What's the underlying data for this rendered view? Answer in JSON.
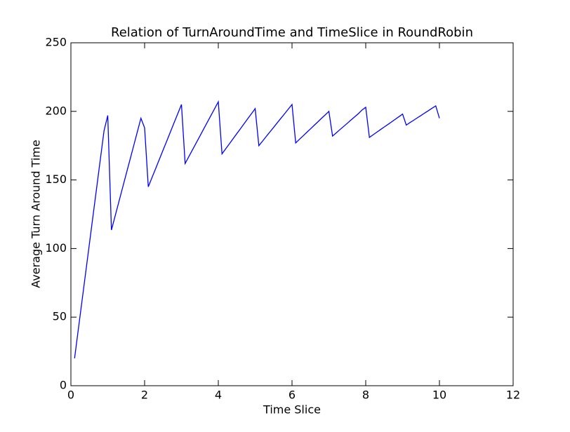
{
  "chart_data": {
    "type": "line",
    "title": "Relation of TurnAroundTime and TimeSlice in RoundRobin",
    "x_label": "Time Slice",
    "y_label": "Average Turn Around Time",
    "x": [
      0.1,
      0.2,
      0.3,
      0.4,
      0.5,
      0.6,
      0.7,
      0.8,
      0.9,
      1.0,
      1.1,
      1.2,
      1.3,
      1.4,
      1.5,
      1.6,
      1.7,
      1.8,
      1.9,
      2.0,
      2.1,
      2.2,
      2.3,
      2.4,
      2.5,
      2.6,
      2.7,
      2.8,
      2.9,
      3.0,
      3.1,
      3.2,
      3.3,
      3.4,
      3.5,
      3.6,
      3.7,
      3.8,
      3.9,
      4.0,
      4.1,
      4.2,
      4.3,
      4.4,
      4.5,
      4.6,
      4.7,
      4.8,
      4.9,
      5.0,
      5.1,
      5.2,
      5.3,
      5.4,
      5.5,
      5.6,
      5.7,
      5.8,
      5.9,
      6.0,
      6.1,
      6.2,
      6.3,
      6.4,
      6.5,
      6.6,
      6.7,
      6.8,
      6.9,
      7.0,
      7.1,
      7.2,
      7.3,
      7.4,
      7.5,
      7.6,
      7.7,
      7.8,
      7.9,
      8.0,
      8.1,
      8.2,
      8.3,
      8.4,
      8.5,
      8.6,
      8.7,
      8.8,
      8.9,
      9.0,
      9.1,
      9.2,
      9.3,
      9.4,
      9.5,
      9.6,
      9.7,
      9.8,
      9.9,
      10.0
    ],
    "series": [
      {
        "name": "Average Turn Around Time",
        "color": "#0000ff",
        "values": [
          20,
          40.8,
          61.5,
          82.3,
          103,
          123.8,
          144.5,
          165.3,
          186,
          197,
          113.5,
          123.7,
          133.9,
          144.1,
          154.3,
          164.4,
          174.6,
          184.8,
          195,
          188,
          145,
          151.7,
          158.3,
          165,
          171.7,
          178.3,
          185,
          191.7,
          198.3,
          205,
          162,
          167,
          172,
          177,
          182,
          187,
          192,
          197,
          202,
          207,
          169,
          172.7,
          176.3,
          180,
          183.7,
          187.3,
          191,
          194.7,
          198.3,
          202,
          175,
          178.3,
          181.7,
          185,
          188.3,
          191.7,
          195,
          198.3,
          201.7,
          205,
          177,
          179.6,
          182.1,
          184.7,
          187.2,
          189.8,
          192.3,
          194.9,
          197.4,
          200,
          182,
          184.3,
          186.7,
          189,
          191.3,
          193.7,
          196,
          198.3,
          201,
          203,
          181,
          182.9,
          184.8,
          186.7,
          188.6,
          190.4,
          192.3,
          194.2,
          196.1,
          198,
          190,
          191.8,
          193.5,
          195.3,
          197,
          198.8,
          200.5,
          202.3,
          204,
          195
        ]
      }
    ],
    "xlim": [
      0,
      12
    ],
    "xticks": [
      0,
      2,
      4,
      6,
      8,
      10,
      12
    ],
    "ylim": [
      0,
      250
    ],
    "yticks": [
      0,
      50,
      100,
      150,
      200,
      250
    ],
    "grid": false
  }
}
